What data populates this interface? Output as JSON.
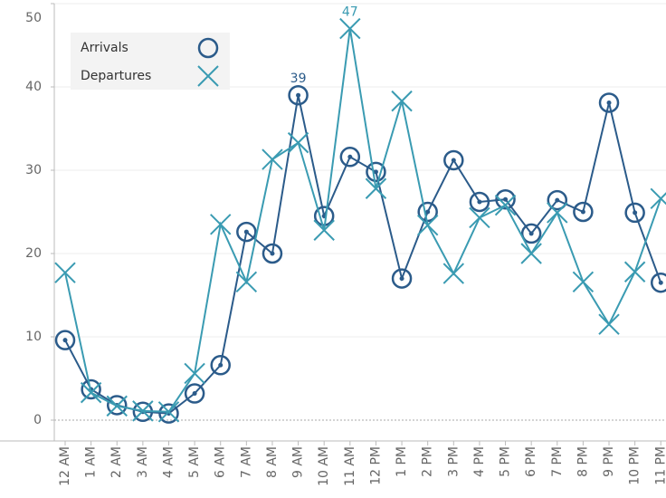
{
  "chart_data": {
    "type": "line",
    "categories": [
      "12 AM",
      "1 AM",
      "2 AM",
      "3 AM",
      "4 AM",
      "5 AM",
      "6 AM",
      "7 AM",
      "8 AM",
      "9 AM",
      "10 AM",
      "11 AM",
      "12 PM",
      "1 PM",
      "2 PM",
      "3 PM",
      "4 PM",
      "5 PM",
      "6 PM",
      "7 PM",
      "8 PM",
      "9 PM",
      "10 PM",
      "11 PM"
    ],
    "series": [
      {
        "name": "Arrivals",
        "color": "#2b5b8a",
        "marker": "circle",
        "values": [
          9.6,
          3.7,
          1.8,
          1.0,
          0.8,
          3.2,
          6.6,
          22.6,
          20.0,
          39,
          24.5,
          31.6,
          29.8,
          17.0,
          25.0,
          31.2,
          26.2,
          26.5,
          22.4,
          26.4,
          25.0,
          38.1,
          24.9,
          16.5
        ],
        "value_labels": [
          null,
          null,
          null,
          null,
          null,
          null,
          null,
          null,
          null,
          "39",
          null,
          null,
          null,
          null,
          null,
          null,
          null,
          null,
          null,
          null,
          null,
          null,
          null,
          null
        ]
      },
      {
        "name": "Departures",
        "color": "#3a9bb2",
        "marker": "x",
        "values": [
          17.7,
          3.3,
          1.7,
          1.1,
          1.0,
          5.6,
          23.5,
          16.6,
          31.3,
          33.3,
          22.8,
          47,
          27.8,
          38.3,
          23.4,
          17.6,
          24.3,
          25.8,
          20.0,
          24.9,
          16.6,
          11.5,
          17.8,
          26.6
        ],
        "value_labels": [
          null,
          null,
          null,
          null,
          null,
          null,
          null,
          null,
          null,
          null,
          null,
          "47",
          null,
          null,
          null,
          null,
          null,
          null,
          null,
          null,
          null,
          null,
          null,
          null
        ]
      }
    ],
    "ylim": [
      -2.5,
      50
    ],
    "yticks": [
      0,
      10,
      20,
      30,
      40,
      50
    ],
    "grid": true,
    "legend": "upper left"
  }
}
